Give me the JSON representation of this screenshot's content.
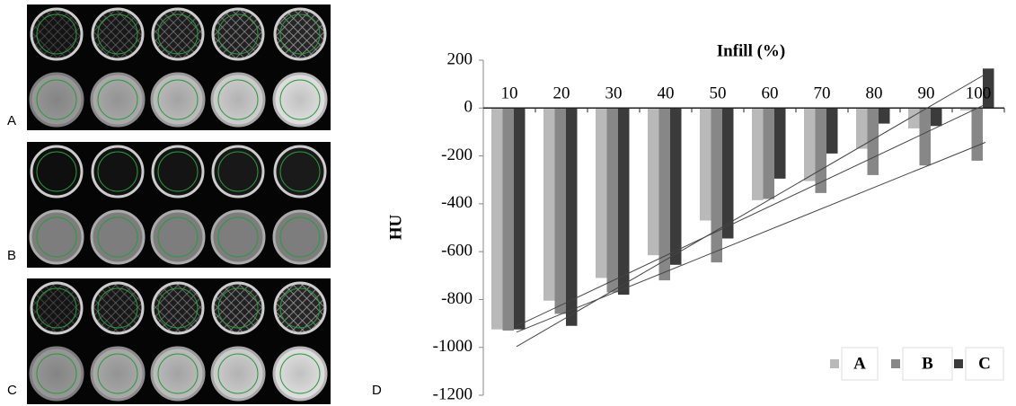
{
  "panel_labels": [
    "A",
    "B",
    "C",
    "D"
  ],
  "chart_data": {
    "type": "bar",
    "title": "Infill (%)",
    "y_label": "HU",
    "categories": [
      "10",
      "20",
      "30",
      "40",
      "50",
      "60",
      "70",
      "80",
      "90",
      "100"
    ],
    "series": [
      {
        "name": "A",
        "color": "#b9b9b9",
        "values": [
          -925,
          -805,
          -710,
          -615,
          -470,
          -385,
          -305,
          -170,
          -85,
          -10
        ]
      },
      {
        "name": "B",
        "color": "#878787",
        "values": [
          -930,
          -860,
          -770,
          -720,
          -645,
          -380,
          -355,
          -280,
          -240,
          -220
        ]
      },
      {
        "name": "C",
        "color": "#3b3b3b",
        "values": [
          -925,
          -910,
          -780,
          -655,
          -545,
          -295,
          -190,
          -65,
          -75,
          165
        ]
      }
    ],
    "ylim": [
      -1200,
      200
    ],
    "yticks": [
      200,
      0,
      -200,
      -400,
      -600,
      -800,
      -1000,
      -1200
    ],
    "trendline": true,
    "legend": "bottom-right"
  }
}
